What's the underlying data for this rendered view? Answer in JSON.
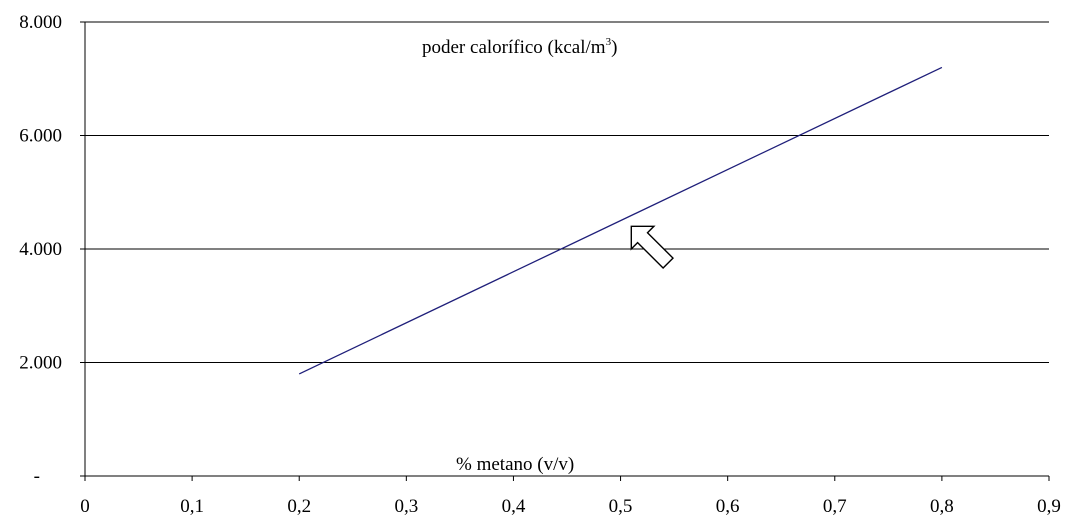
{
  "chart_data": {
    "type": "line",
    "title": "poder calorífico (kcal/m3)",
    "title_parts": {
      "base": "poder calorífico (kcal/m",
      "sup": "3",
      "close": ")"
    },
    "xlabel": "% metano (v/v)",
    "ylabel": "",
    "xlim": [
      0,
      0.9
    ],
    "ylim": [
      0,
      8000
    ],
    "x_ticks": [
      {
        "value": 0,
        "label": "0"
      },
      {
        "value": 0.1,
        "label": "0,1"
      },
      {
        "value": 0.2,
        "label": "0,2"
      },
      {
        "value": 0.3,
        "label": "0,3"
      },
      {
        "value": 0.4,
        "label": "0,4"
      },
      {
        "value": 0.5,
        "label": "0,5"
      },
      {
        "value": 0.6,
        "label": "0,6"
      },
      {
        "value": 0.7,
        "label": "0,7"
      },
      {
        "value": 0.8,
        "label": "0,8"
      },
      {
        "value": 0.9,
        "label": "0,9"
      }
    ],
    "y_ticks": [
      {
        "value": 0,
        "label": "-"
      },
      {
        "value": 2000,
        "label": "2.000"
      },
      {
        "value": 4000,
        "label": "4.000"
      },
      {
        "value": 6000,
        "label": "6.000"
      },
      {
        "value": 8000,
        "label": "8.000"
      }
    ],
    "grid": "horizontal",
    "series": [
      {
        "x": [
          0.2,
          0.8
        ],
        "y": [
          1800,
          7200
        ],
        "color": "#1f1f7a"
      }
    ],
    "annotation": {
      "shape": "hollow-arrow",
      "points_to": {
        "x": 0.51,
        "y": 4400
      },
      "direction": "up-left"
    }
  },
  "colors": {
    "line": "#1f1f7a",
    "grid": "#000000",
    "axis": "#000000",
    "text": "#000000"
  }
}
